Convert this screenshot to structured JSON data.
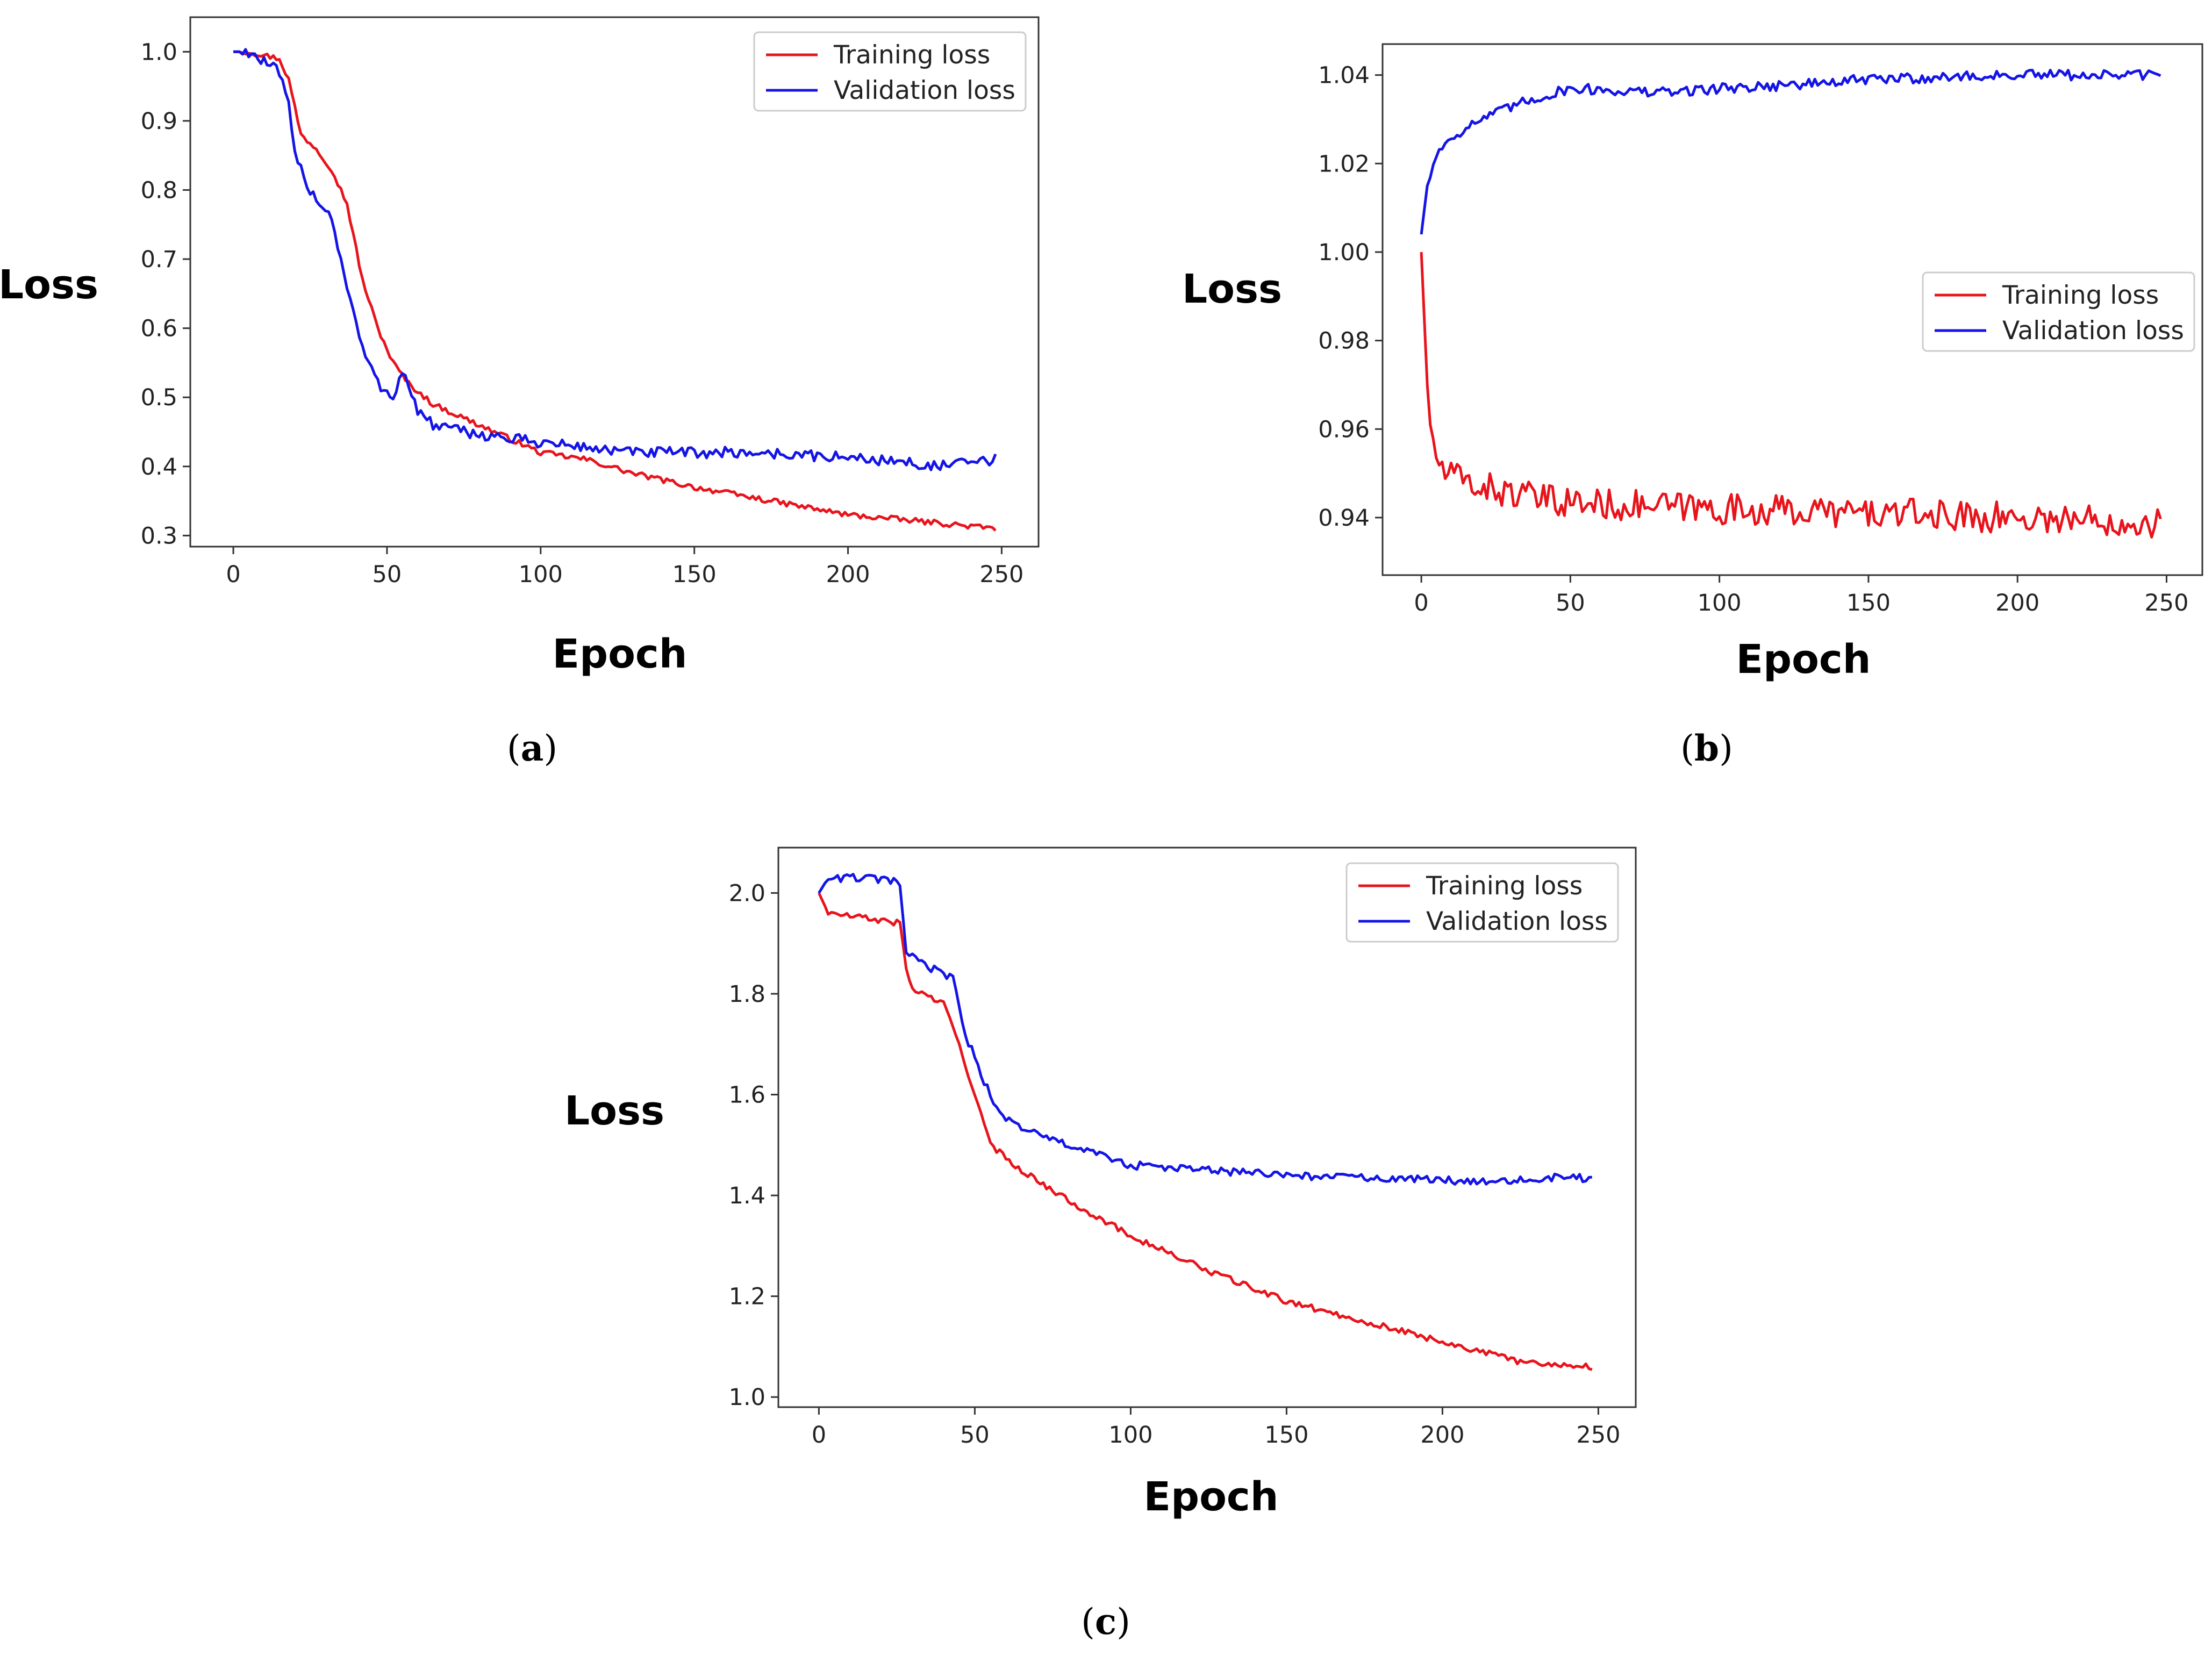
{
  "chart_data": [
    {
      "panel": "a",
      "type": "line",
      "title": "",
      "ylabel": "Loss",
      "xlabel": "Epoch",
      "panel_label": "a",
      "xlim": [
        -14,
        262
      ],
      "ylim": [
        0.284,
        1.05
      ],
      "xticks": [
        0,
        50,
        100,
        150,
        200,
        250
      ],
      "yticks": [
        0.3,
        0.4,
        0.5,
        0.6,
        0.7,
        0.8,
        0.9,
        1.0
      ],
      "ytick_labels": [
        "0.3",
        "0.4",
        "0.5",
        "0.6",
        "0.7",
        "0.8",
        "0.9",
        "1.0"
      ],
      "legend": {
        "position": "top-right",
        "entries": [
          "Training loss",
          "Validation loss"
        ]
      },
      "series": [
        {
          "name": "Training loss",
          "color": "#e8141c",
          "keypoints": [
            [
              0,
              1.0
            ],
            [
              5,
              1.0
            ],
            [
              15,
              0.99
            ],
            [
              18,
              0.96
            ],
            [
              22,
              0.88
            ],
            [
              27,
              0.86
            ],
            [
              32,
              0.83
            ],
            [
              37,
              0.78
            ],
            [
              42,
              0.67
            ],
            [
              47,
              0.6
            ],
            [
              52,
              0.55
            ],
            [
              57,
              0.52
            ],
            [
              65,
              0.49
            ],
            [
              80,
              0.46
            ],
            [
              100,
              0.42
            ],
            [
              115,
              0.41
            ],
            [
              130,
              0.39
            ],
            [
              150,
              0.37
            ],
            [
              175,
              0.35
            ],
            [
              200,
              0.33
            ],
            [
              225,
              0.32
            ],
            [
              248,
              0.31
            ]
          ],
          "noise": 0.004
        },
        {
          "name": "Validation loss",
          "color": "#1414e6",
          "keypoints": [
            [
              0,
              1.0
            ],
            [
              5,
              1.0
            ],
            [
              15,
              0.97
            ],
            [
              18,
              0.92
            ],
            [
              20,
              0.85
            ],
            [
              25,
              0.8
            ],
            [
              32,
              0.76
            ],
            [
              37,
              0.66
            ],
            [
              42,
              0.57
            ],
            [
              47,
              0.52
            ],
            [
              52,
              0.5
            ],
            [
              55,
              0.54
            ],
            [
              60,
              0.48
            ],
            [
              65,
              0.46
            ],
            [
              75,
              0.45
            ],
            [
              90,
              0.44
            ],
            [
              110,
              0.43
            ],
            [
              130,
              0.42
            ],
            [
              150,
              0.42
            ],
            [
              170,
              0.42
            ],
            [
              190,
              0.415
            ],
            [
              210,
              0.41
            ],
            [
              230,
              0.4
            ],
            [
              248,
              0.41
            ]
          ],
          "noise": 0.008
        }
      ]
    },
    {
      "panel": "b",
      "type": "line",
      "title": "",
      "ylabel": "Loss",
      "xlabel": "Epoch",
      "panel_label": "b",
      "xlim": [
        -13,
        262
      ],
      "ylim": [
        0.927,
        1.047
      ],
      "xticks": [
        0,
        50,
        100,
        150,
        200,
        250
      ],
      "yticks": [
        0.94,
        0.96,
        0.98,
        1.0,
        1.02,
        1.04
      ],
      "ytick_labels": [
        "0.94",
        "0.96",
        "0.98",
        "1.00",
        "1.02",
        "1.04"
      ],
      "legend": {
        "position": "center-right",
        "entries": [
          "Training loss",
          "Validation loss"
        ]
      },
      "series": [
        {
          "name": "Training loss",
          "color": "#e8141c",
          "keypoints": [
            [
              0,
              1.0
            ],
            [
              1,
              0.985
            ],
            [
              2,
              0.97
            ],
            [
              4,
              0.955
            ],
            [
              8,
              0.95
            ],
            [
              20,
              0.947
            ],
            [
              40,
              0.944
            ],
            [
              60,
              0.943
            ],
            [
              100,
              0.942
            ],
            [
              150,
              0.941
            ],
            [
              200,
              0.94
            ],
            [
              248,
              0.939
            ]
          ],
          "noise": 0.0035
        },
        {
          "name": "Validation loss",
          "color": "#1414e6",
          "keypoints": [
            [
              0,
              1.004
            ],
            [
              2,
              1.015
            ],
            [
              5,
              1.022
            ],
            [
              10,
              1.026
            ],
            [
              20,
              1.03
            ],
            [
              35,
              1.034
            ],
            [
              50,
              1.037
            ],
            [
              80,
              1.036
            ],
            [
              100,
              1.037
            ],
            [
              130,
              1.038
            ],
            [
              150,
              1.039
            ],
            [
              200,
              1.04
            ],
            [
              248,
              1.04
            ]
          ],
          "noise": 0.0012
        }
      ]
    },
    {
      "panel": "c",
      "type": "line",
      "title": "",
      "ylabel": "Loss",
      "xlabel": "Epoch",
      "panel_label": "c",
      "xlim": [
        -13,
        262
      ],
      "ylim": [
        0.98,
        2.09
      ],
      "xticks": [
        0,
        50,
        100,
        150,
        200,
        250
      ],
      "yticks": [
        1.0,
        1.2,
        1.4,
        1.6,
        1.8,
        2.0
      ],
      "ytick_labels": [
        "1.0",
        "1.2",
        "1.4",
        "1.6",
        "1.8",
        "2.0"
      ],
      "legend": {
        "position": "top-right",
        "entries": [
          "Training loss",
          "Validation loss"
        ]
      },
      "series": [
        {
          "name": "Training loss",
          "color": "#e8141c",
          "keypoints": [
            [
              0,
              2.0
            ],
            [
              3,
              1.96
            ],
            [
              15,
              1.95
            ],
            [
              26,
              1.94
            ],
            [
              28,
              1.85
            ],
            [
              30,
              1.81
            ],
            [
              40,
              1.78
            ],
            [
              45,
              1.7
            ],
            [
              50,
              1.6
            ],
            [
              55,
              1.5
            ],
            [
              65,
              1.45
            ],
            [
              80,
              1.39
            ],
            [
              100,
              1.32
            ],
            [
              125,
              1.25
            ],
            [
              150,
              1.19
            ],
            [
              175,
              1.15
            ],
            [
              200,
              1.11
            ],
            [
              225,
              1.07
            ],
            [
              248,
              1.06
            ]
          ],
          "noise": 0.006
        },
        {
          "name": "Validation loss",
          "color": "#1414e6",
          "keypoints": [
            [
              0,
              2.0
            ],
            [
              3,
              2.03
            ],
            [
              15,
              2.03
            ],
            [
              26,
              2.02
            ],
            [
              28,
              1.88
            ],
            [
              33,
              1.86
            ],
            [
              43,
              1.83
            ],
            [
              47,
              1.72
            ],
            [
              52,
              1.64
            ],
            [
              58,
              1.56
            ],
            [
              70,
              1.52
            ],
            [
              85,
              1.49
            ],
            [
              100,
              1.46
            ],
            [
              125,
              1.45
            ],
            [
              150,
              1.44
            ],
            [
              200,
              1.43
            ],
            [
              230,
              1.43
            ],
            [
              240,
              1.44
            ],
            [
              248,
              1.43
            ]
          ],
          "noise": 0.008
        }
      ]
    }
  ]
}
